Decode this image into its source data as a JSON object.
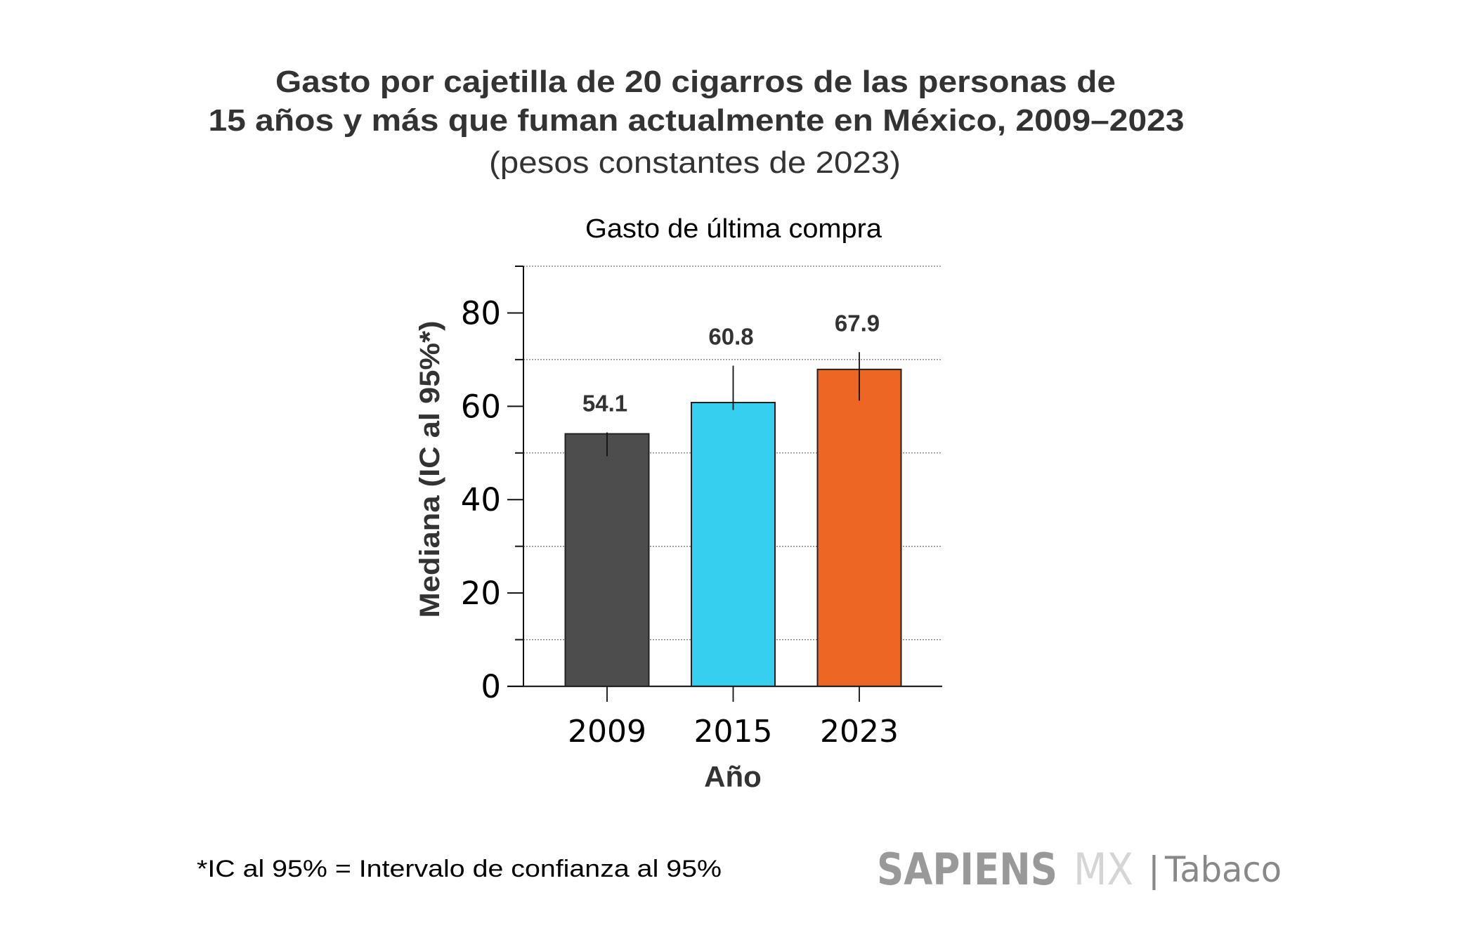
{
  "header": {
    "title_line1": "Gasto por cajetilla de 20 cigarros de las personas de",
    "title_line2": "15 años y más que fuman actualmente en México, 2009–2023",
    "subtitle": "(pesos constantes de 2023)"
  },
  "chart_data": {
    "type": "bar",
    "title": "Gasto de última compra",
    "xlabel": "Año",
    "ylabel": "Mediana (IC al 95%*)",
    "categories": [
      "2009",
      "2015",
      "2023"
    ],
    "values": [
      54.1,
      60.8,
      67.9
    ],
    "value_labels": [
      "54.1",
      "60.8",
      "67.9"
    ],
    "error_bars": [
      {
        "low": 49.3,
        "high": 54.4
      },
      {
        "low": 59.2,
        "high": 68.7
      },
      {
        "low": 61.2,
        "high": 71.6
      }
    ],
    "bar_colors": [
      "#4d4d4d",
      "#36cfef",
      "#ee6623"
    ],
    "ylim": [
      0,
      90
    ],
    "yticks": [
      0,
      20,
      40,
      60,
      80
    ],
    "ytick_labels": [
      "0",
      "20",
      "40",
      "60",
      "80"
    ],
    "minor_yticks": [
      10,
      30,
      50,
      70,
      90
    ],
    "grid": "dotted horizontal at minor ticks",
    "legend": "none"
  },
  "footer": {
    "footnote": "*IC al 95% = Intervalo de confianza al 95%",
    "brand_primary": "SAPIENS",
    "brand_secondary": "MX",
    "brand_separator": "|",
    "brand_section": "Tabaco"
  },
  "colors": {
    "text_dark": "#333333",
    "brand_primary": "#999999",
    "brand_secondary": "#d5d5d5",
    "brand_section": "#888888",
    "grid": "#888888"
  }
}
